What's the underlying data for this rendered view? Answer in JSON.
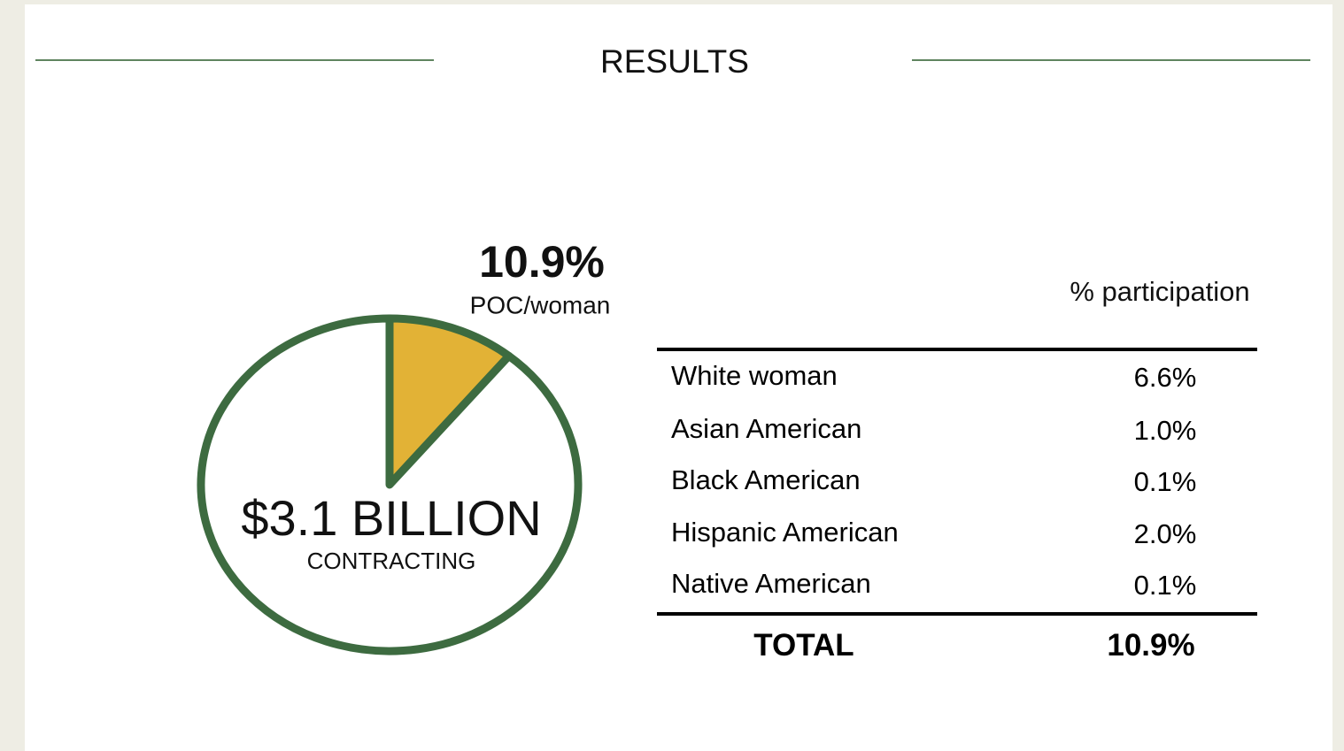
{
  "title": "RESULTS",
  "chart_data": {
    "type": "pie",
    "categories": [
      "POC/woman",
      null
    ],
    "values": [
      10.9,
      89.1
    ],
    "value_labels": [
      "10.9%",
      null
    ],
    "colors": [
      "#e2b236",
      "#ffffff"
    ],
    "annotations": [
      "$3.1 BILLION",
      "CONTRACTING"
    ]
  },
  "table": {
    "column_header": "% participation",
    "rows": [
      [
        "White woman",
        "6.6%"
      ],
      [
        "Asian American",
        "1.0%"
      ],
      [
        "Black American",
        "0.1%"
      ],
      [
        "Hispanic American",
        "2.0%"
      ],
      [
        "Native American",
        "0.1%"
      ]
    ],
    "total": [
      "TOTAL",
      "10.9%"
    ]
  }
}
